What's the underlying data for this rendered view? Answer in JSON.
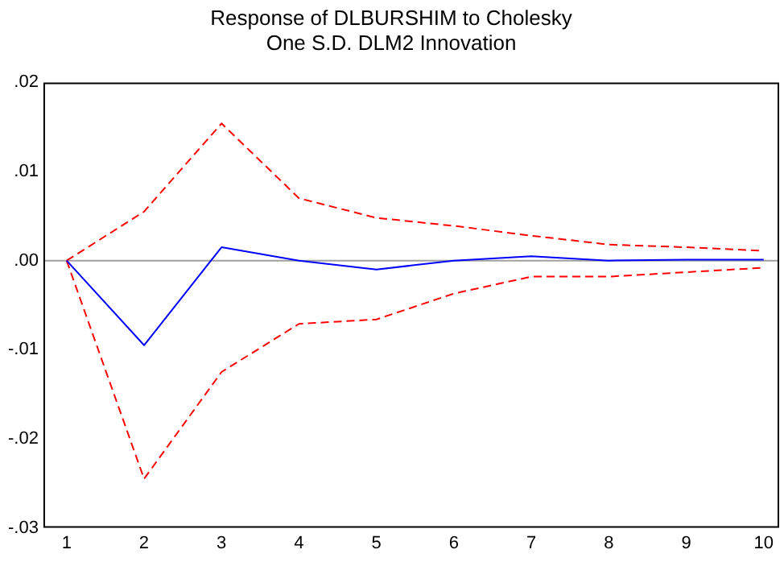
{
  "chart_data": {
    "type": "line",
    "title": "Response of DLBURSHIM to Cholesky",
    "subtitle": "One S.D. DLM2 Innovation",
    "x": [
      1,
      2,
      3,
      4,
      5,
      6,
      7,
      8,
      9,
      10
    ],
    "xlim": [
      0.7,
      10.2
    ],
    "xticks": [
      1,
      2,
      3,
      4,
      5,
      6,
      7,
      8,
      9,
      10
    ],
    "ylim": [
      -0.03,
      0.02
    ],
    "yticks": [
      {
        "value": -0.03,
        "label": "-.03"
      },
      {
        "value": -0.02,
        "label": "-.02"
      },
      {
        "value": -0.01,
        "label": "-.01"
      },
      {
        "value": 0,
        "label": ".00"
      },
      {
        "value": 0.01,
        "label": ".01"
      },
      {
        "value": 0.02,
        "label": ".02"
      }
    ],
    "series": [
      {
        "color": "#0000ff",
        "line_style": "solid",
        "values": [
          0,
          -0.0095,
          0.0015,
          0,
          -0.001,
          0,
          0.0005,
          0,
          0.0001,
          0.0001
        ]
      },
      {
        "color": "#ff0000",
        "line_style": "dashed",
        "values": [
          0,
          0.0055,
          0.0154,
          0.007,
          0.0048,
          0.0039,
          0.0028,
          0.0018,
          0.0015,
          0.0011
        ]
      },
      {
        "color": "#ff0000",
        "line_style": "dashed",
        "values": [
          0,
          -0.0245,
          -0.0125,
          -0.0071,
          -0.0066,
          -0.0037,
          -0.0018,
          -0.0018,
          -0.0013,
          -0.0008
        ]
      }
    ],
    "ref_lines": [
      {
        "axis": "y",
        "value": 0,
        "color": "#a0a0a0"
      }
    ],
    "marker": "none",
    "grid": false,
    "legend": false
  }
}
